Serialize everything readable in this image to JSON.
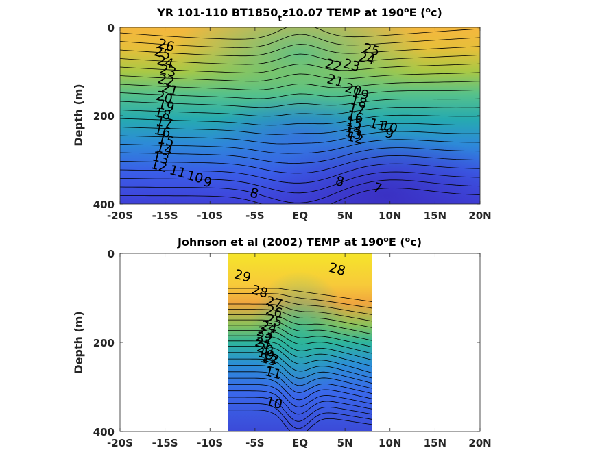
{
  "chart_data": [
    {
      "type": "heatmap",
      "title": "YR 101-110 BT1850",
      "title_sub": "t",
      "title_tail": "z10.07 TEMP at 190",
      "title_deg": "o",
      "title_end": "E (",
      "title_unit": "o",
      "title_close": "c)",
      "ylabel": "Depth (m)",
      "xlabel": "",
      "xlim": [
        -20,
        20
      ],
      "ylim": [
        400,
        0
      ],
      "x_ticks": [
        -20,
        -15,
        -10,
        -5,
        0,
        5,
        10,
        15,
        20
      ],
      "x_tick_labels": [
        "-20S",
        "-15S",
        "-10S",
        "-5S",
        "EQ",
        "5N",
        "10N",
        "15N",
        "20N"
      ],
      "y_ticks": [
        0,
        200,
        400
      ],
      "y_tick_labels": [
        "0",
        "200",
        "400"
      ],
      "data_extent_x": [
        -20,
        20
      ],
      "contour_labels": [
        {
          "x": -15.0,
          "y": 50,
          "t": "26"
        },
        {
          "x": -15.4,
          "y": 68,
          "t": "25"
        },
        {
          "x": -15.1,
          "y": 88,
          "t": "24"
        },
        {
          "x": -14.8,
          "y": 108,
          "t": "23"
        },
        {
          "x": -15.0,
          "y": 130,
          "t": "22"
        },
        {
          "x": -14.6,
          "y": 150,
          "t": "21"
        },
        {
          "x": -15.2,
          "y": 168,
          "t": "20"
        },
        {
          "x": -15.0,
          "y": 187,
          "t": "19"
        },
        {
          "x": -15.4,
          "y": 205,
          "t": "18"
        },
        {
          "x": -15.2,
          "y": 225,
          "t": "17"
        },
        {
          "x": -15.4,
          "y": 245,
          "t": "16"
        },
        {
          "x": -15.0,
          "y": 265,
          "t": "15"
        },
        {
          "x": -15.2,
          "y": 285,
          "t": "14"
        },
        {
          "x": -15.6,
          "y": 305,
          "t": "13"
        },
        {
          "x": -15.8,
          "y": 323,
          "t": "12"
        },
        {
          "x": -13.7,
          "y": 336,
          "t": "11"
        },
        {
          "x": -11.8,
          "y": 348,
          "t": "10"
        },
        {
          "x": -10.4,
          "y": 360,
          "t": "9"
        },
        {
          "x": -5.2,
          "y": 385,
          "t": "8"
        },
        {
          "x": 4.3,
          "y": 358,
          "t": "8"
        },
        {
          "x": 8.5,
          "y": 373,
          "t": "7"
        },
        {
          "x": 7.8,
          "y": 60,
          "t": "25"
        },
        {
          "x": 7.3,
          "y": 80,
          "t": "24"
        },
        {
          "x": 5.6,
          "y": 95,
          "t": "23"
        },
        {
          "x": 3.6,
          "y": 95,
          "t": "22"
        },
        {
          "x": 3.8,
          "y": 130,
          "t": "21"
        },
        {
          "x": 5.8,
          "y": 150,
          "t": "20"
        },
        {
          "x": 6.6,
          "y": 160,
          "t": "19"
        },
        {
          "x": 6.4,
          "y": 178,
          "t": "18"
        },
        {
          "x": 6.2,
          "y": 194,
          "t": "17"
        },
        {
          "x": 6.0,
          "y": 212,
          "t": "16"
        },
        {
          "x": 5.9,
          "y": 226,
          "t": "15"
        },
        {
          "x": 5.8,
          "y": 240,
          "t": "14"
        },
        {
          "x": 5.8,
          "y": 250,
          "t": "13"
        },
        {
          "x": 6.0,
          "y": 260,
          "t": "12"
        },
        {
          "x": 8.5,
          "y": 230,
          "t": "11"
        },
        {
          "x": 9.8,
          "y": 235,
          "t": "10"
        },
        {
          "x": 9.8,
          "y": 250,
          "t": "9"
        }
      ]
    },
    {
      "type": "heatmap",
      "title": "Johnson et al (2002) TEMP at 190",
      "title_deg": "o",
      "title_end": "E (",
      "title_unit": "o",
      "title_close": "c)",
      "ylabel": "Depth (m)",
      "xlabel": "",
      "xlim": [
        -20,
        20
      ],
      "ylim": [
        400,
        0
      ],
      "x_ticks": [
        -20,
        -15,
        -10,
        -5,
        0,
        5,
        10,
        15,
        20
      ],
      "x_tick_labels": [
        "-20S",
        "-15S",
        "-10S",
        "-5S",
        "EQ",
        "5N",
        "10N",
        "15N",
        "20N"
      ],
      "y_ticks": [
        0,
        200,
        400
      ],
      "y_tick_labels": [
        "0",
        "200",
        "400"
      ],
      "data_extent_x": [
        -8,
        8
      ],
      "contour_labels": [
        {
          "x": -6.5,
          "y": 60,
          "t": "29"
        },
        {
          "x": 4.0,
          "y": 45,
          "t": "28"
        },
        {
          "x": -4.6,
          "y": 95,
          "t": "28"
        },
        {
          "x": -3.0,
          "y": 120,
          "t": "27"
        },
        {
          "x": -3.0,
          "y": 140,
          "t": "26"
        },
        {
          "x": -3.0,
          "y": 160,
          "t": "25"
        },
        {
          "x": -3.6,
          "y": 175,
          "t": "24"
        },
        {
          "x": -4.0,
          "y": 188,
          "t": "23"
        },
        {
          "x": -4.1,
          "y": 200,
          "t": "22"
        },
        {
          "x": -4.2,
          "y": 212,
          "t": "21"
        },
        {
          "x": -4.0,
          "y": 224,
          "t": "20"
        },
        {
          "x": -3.9,
          "y": 236,
          "t": "19"
        },
        {
          "x": -3.6,
          "y": 248,
          "t": "13"
        },
        {
          "x": -3.4,
          "y": 245,
          "t": "12"
        },
        {
          "x": -3.1,
          "y": 278,
          "t": "11"
        },
        {
          "x": -3.0,
          "y": 345,
          "t": "10"
        }
      ]
    }
  ]
}
